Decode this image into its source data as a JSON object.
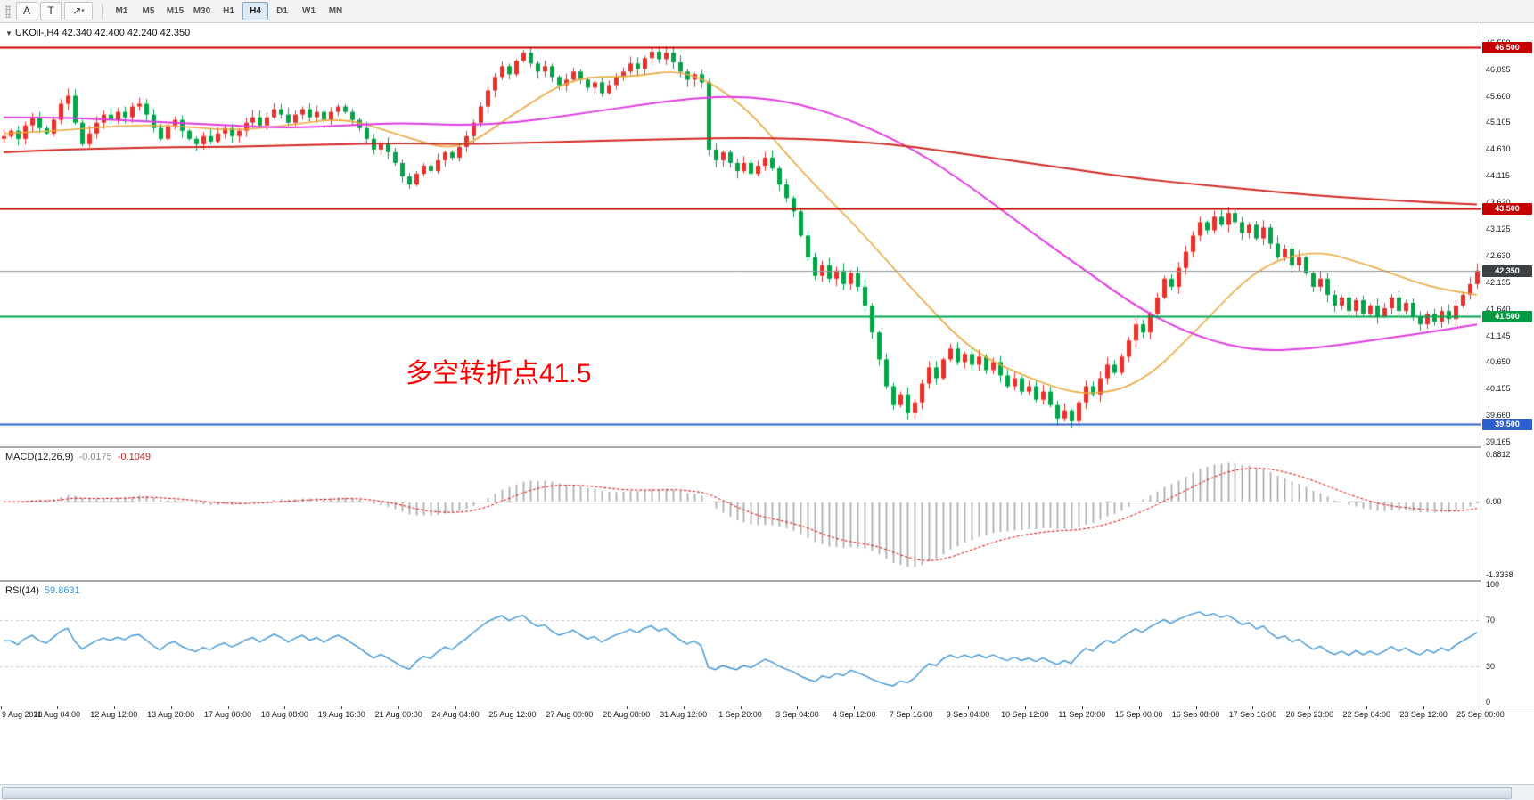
{
  "toolbar": {
    "tool_buttons": [
      {
        "id": "pointer",
        "label": "A"
      },
      {
        "id": "text",
        "label": "T"
      },
      {
        "id": "draw",
        "label": "↗",
        "caret": "▾"
      }
    ],
    "timeframes": [
      "M1",
      "M5",
      "M15",
      "M30",
      "H1",
      "H4",
      "D1",
      "W1",
      "MN"
    ],
    "active_timeframe": "H4"
  },
  "price_pane": {
    "symbol_title": "UKOil-,H4",
    "ohlc": "42.340 42.400 42.240 42.350",
    "annotation_text": "多空转折点41.5",
    "y_ticks": [
      46.59,
      46.095,
      45.6,
      45.105,
      44.61,
      44.115,
      43.62,
      43.125,
      42.63,
      42.135,
      41.64,
      41.145,
      40.65,
      40.155,
      39.66,
      39.165
    ],
    "levels": [
      {
        "value": 46.5,
        "label": "46.500",
        "line": "#cc0000",
        "badge": "#c40000",
        "width": 2
      },
      {
        "value": 43.5,
        "label": "43.500",
        "line": "#cc0000",
        "badge": "#c40000",
        "width": 2
      },
      {
        "value": 42.35,
        "label": "42.350",
        "line": "#8f969c",
        "badge": "#3c4043",
        "width": 1
      },
      {
        "value": 41.5,
        "label": "41.500",
        "line": "#00a651",
        "badge": "#009a44",
        "width": 2
      },
      {
        "value": 39.5,
        "label": "39.500",
        "line": "#2d5fd0",
        "badge": "#2d5fd0",
        "width": 2
      }
    ]
  },
  "macd_pane": {
    "title": "MACD(12,26,9)",
    "value": "-0.0175",
    "signal_value": "-0.1049",
    "y_ticks": [
      {
        "v": 0.8812,
        "label": "0.8812"
      },
      {
        "v": 0,
        "label": "0.00"
      },
      {
        "v": -1.3368,
        "label": "-1.3368"
      }
    ]
  },
  "rsi_pane": {
    "title": "RSI(14)",
    "value": "59.8631",
    "y_ticks": [
      {
        "v": 100,
        "label": "100"
      },
      {
        "v": 70,
        "label": "70"
      },
      {
        "v": 30,
        "label": "30"
      },
      {
        "v": 0,
        "label": "0"
      }
    ],
    "levels": [
      70,
      30
    ]
  },
  "time_axis": {
    "bars_per_label": 8,
    "labels": [
      "9 Aug 2020",
      "11 Aug 04:00",
      "12 Aug 12:00",
      "13 Aug 20:00",
      "17 Aug 00:00",
      "18 Aug 08:00",
      "19 Aug 16:00",
      "21 Aug 00:00",
      "24 Aug 04:00",
      "25 Aug 12:00",
      "27 Aug 00:00",
      "28 Aug 08:00",
      "31 Aug 12:00",
      "1 Sep 20:00",
      "3 Sep 04:00",
      "4 Sep 12:00",
      "7 Sep 16:00",
      "9 Sep 04:00",
      "10 Sep 12:00",
      "11 Sep 20:00",
      "15 Sep 00:00",
      "16 Sep 08:00",
      "17 Sep 16:00",
      "20 Sep 23:00",
      "22 Sep 04:00",
      "23 Sep 12:00",
      "25 Sep 00:00"
    ]
  },
  "chart_data": {
    "type": "candlestick",
    "symbol": "UKOil",
    "timeframe": "H4",
    "bars": 208,
    "price_range": {
      "min": 39.1,
      "max": 46.95
    },
    "closes": [
      44.85,
      44.95,
      44.8,
      45.05,
      45.2,
      45.0,
      44.9,
      45.15,
      45.45,
      45.6,
      45.1,
      44.7,
      44.9,
      45.1,
      45.25,
      45.15,
      45.3,
      45.2,
      45.4,
      45.45,
      45.25,
      45.0,
      44.8,
      45.05,
      45.15,
      44.95,
      44.8,
      44.7,
      44.85,
      44.75,
      44.9,
      45.0,
      44.85,
      44.95,
      45.1,
      45.2,
      45.05,
      45.2,
      45.35,
      45.25,
      45.1,
      45.25,
      45.35,
      45.2,
      45.3,
      45.15,
      45.3,
      45.4,
      45.3,
      45.15,
      45.0,
      44.8,
      44.6,
      44.7,
      44.55,
      44.35,
      44.1,
      43.95,
      44.15,
      44.3,
      44.2,
      44.4,
      44.55,
      44.45,
      44.65,
      44.85,
      45.1,
      45.4,
      45.7,
      45.95,
      46.15,
      46.0,
      46.25,
      46.4,
      46.2,
      46.05,
      46.15,
      45.95,
      45.8,
      45.9,
      46.05,
      45.9,
      45.75,
      45.85,
      45.65,
      45.8,
      45.95,
      46.05,
      46.2,
      46.1,
      46.3,
      46.42,
      46.28,
      46.4,
      46.22,
      46.05,
      45.9,
      46.0,
      45.85,
      44.6,
      44.4,
      44.55,
      44.35,
      44.2,
      44.35,
      44.15,
      44.3,
      44.45,
      44.25,
      43.95,
      43.7,
      43.45,
      43.0,
      42.6,
      42.25,
      42.45,
      42.2,
      42.35,
      42.1,
      42.3,
      42.05,
      41.7,
      41.2,
      40.7,
      40.2,
      39.85,
      40.05,
      39.7,
      39.9,
      40.25,
      40.55,
      40.35,
      40.7,
      40.9,
      40.65,
      40.8,
      40.6,
      40.75,
      40.5,
      40.65,
      40.4,
      40.2,
      40.35,
      40.1,
      40.2,
      39.95,
      40.1,
      39.85,
      39.6,
      39.75,
      39.55,
      39.9,
      40.2,
      40.05,
      40.35,
      40.6,
      40.45,
      40.75,
      41.05,
      41.35,
      41.2,
      41.55,
      41.85,
      42.2,
      42.05,
      42.4,
      42.7,
      43.0,
      43.25,
      43.1,
      43.35,
      43.2,
      43.42,
      43.25,
      43.05,
      43.2,
      42.95,
      43.15,
      42.85,
      42.6,
      42.75,
      42.45,
      42.6,
      42.3,
      42.05,
      42.2,
      41.9,
      41.7,
      41.85,
      41.6,
      41.8,
      41.55,
      41.7,
      41.5,
      41.65,
      41.85,
      41.6,
      41.75,
      41.5,
      41.35,
      41.55,
      41.4,
      41.6,
      41.45,
      41.7,
      41.9,
      42.1,
      42.35
    ],
    "overlays": [
      {
        "name": "ma-fast-orange",
        "color": "#eda83f",
        "width": 1.6,
        "sample_step": 8,
        "values": [
          44.9,
          44.95,
          45.05,
          45.05,
          44.95,
          45.05,
          45.2,
          44.85,
          44.55,
          45.3,
          45.95,
          45.95,
          46.1,
          45.45,
          44.2,
          43.15,
          41.95,
          40.85,
          40.35,
          40.0,
          40.25,
          41.3,
          42.4,
          42.75,
          42.45,
          42.05,
          41.9
        ]
      },
      {
        "name": "ma-mid-magenta",
        "color": "#e13ce1",
        "width": 2,
        "sample_step": 8,
        "values": [
          45.2,
          45.2,
          45.15,
          45.1,
          45.05,
          45.0,
          45.05,
          45.1,
          45.05,
          45.1,
          45.25,
          45.4,
          45.55,
          45.6,
          45.45,
          45.1,
          44.6,
          43.9,
          43.1,
          42.35,
          41.6,
          41.1,
          40.85,
          40.9,
          41.05,
          41.2,
          41.35
        ]
      },
      {
        "name": "ma-slow-red",
        "color": "#d22a22",
        "width": 2,
        "sample_step": 8,
        "values": [
          44.55,
          44.6,
          44.62,
          44.65,
          44.65,
          44.68,
          44.7,
          44.72,
          44.7,
          44.72,
          44.75,
          44.78,
          44.8,
          44.82,
          44.8,
          44.75,
          44.65,
          44.5,
          44.35,
          44.2,
          44.05,
          43.95,
          43.85,
          43.75,
          43.68,
          43.62,
          43.58
        ]
      }
    ],
    "macd": {
      "params": [
        12,
        26,
        9
      ],
      "range": {
        "min": -1.42,
        "max": 0.99
      }
    },
    "rsi": {
      "period": 14,
      "levels": [
        70,
        30
      ]
    },
    "colors": {
      "up": "#e8312a",
      "down": "#00a447",
      "macd_hist": "#a6a6a6",
      "macd_signal": "#e00000",
      "rsi_line": "#3d95d6"
    }
  }
}
